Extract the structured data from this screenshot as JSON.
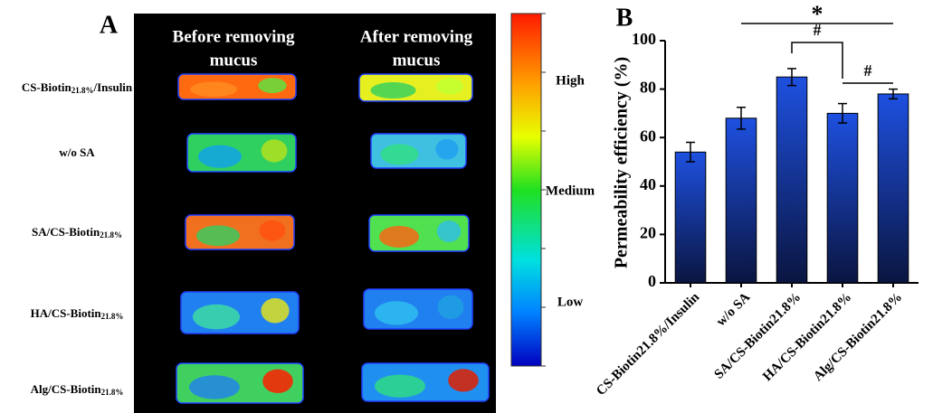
{
  "panel_a": {
    "label": "A",
    "columns": [
      [
        "Before removing",
        "mucus"
      ],
      [
        "After removing",
        "mucus"
      ]
    ],
    "rows": [
      {
        "prefix": "CS-Biotin",
        "sub": "21.8%",
        "suffix": "/Insulin"
      },
      {
        "prefix": "w/o SA"
      },
      {
        "prefix": "SA/CS-Biotin",
        "sub": "21.8%"
      },
      {
        "prefix": "HA/CS-Biotin",
        "sub": "21.8%"
      },
      {
        "prefix": "Alg/CS-Biotin",
        "sub": "21.8%"
      }
    ],
    "colorbar_labels": [
      "High",
      "Medium",
      "Low"
    ]
  },
  "chart_data": {
    "type": "bar",
    "panel_label": "B",
    "y_label": "Permeability efficiency (%)",
    "categories": [
      "CS-Biotin21.8%/Insulin",
      "w/o SA",
      "SA/CS-Biotin21.8%",
      "HA/CS-Biotin21.8%",
      "Alg/CS-Biotin21.8%"
    ],
    "values": [
      54,
      68,
      85,
      70,
      78
    ],
    "errors": [
      4,
      4.5,
      3.5,
      4,
      2
    ],
    "color": "#1e50e0",
    "ylim": [
      0,
      100
    ],
    "yticks": [
      0,
      20,
      40,
      60,
      80,
      100
    ],
    "annotations": [
      "*",
      "#",
      "#"
    ]
  }
}
